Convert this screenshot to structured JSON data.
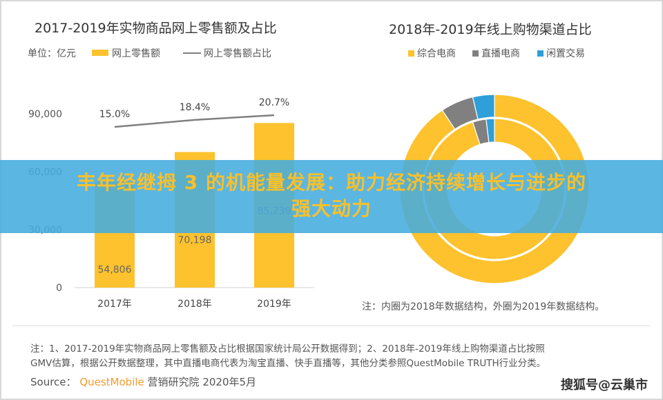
{
  "chart_data": [
    {
      "type": "bar",
      "title": "2017-2019年实物商品网上零售额及占比",
      "unit_label": "单位：亿元",
      "categories": [
        "2017年",
        "2018年",
        "2019年"
      ],
      "series": [
        {
          "name": "网上零售额",
          "type": "bar",
          "values": [
            54806,
            70198,
            85239
          ],
          "labels": [
            "54,806",
            "70,198",
            "85,239"
          ],
          "color": "#fdc22d"
        },
        {
          "name": "网上零售额占比",
          "type": "line",
          "values": [
            15.0,
            18.4,
            20.7
          ],
          "labels": [
            "15.0%",
            "18.4%",
            "20.7%"
          ],
          "color": "#7f7f7f"
        }
      ],
      "yticks": [
        "90,000",
        "60,000",
        "30,000",
        "0"
      ],
      "ylim": [
        0,
        90000
      ]
    },
    {
      "type": "pie",
      "subtype": "donut",
      "title": "2018年-2019年线上购物渠道占比",
      "legend": [
        "综合电商",
        "直播电商",
        "闲置交易"
      ],
      "colors": [
        "#fdc22d",
        "#808080",
        "#2e9fd8"
      ],
      "rings": [
        {
          "name": "2018年",
          "position": "inner",
          "values": [
            95.0,
            3.1,
            1.9
          ]
        },
        {
          "name": "2019年",
          "position": "outer",
          "values": [
            90.7,
            5.6,
            3.7
          ]
        }
      ],
      "note": "注：内圈为2018年数据结构，外圈为2019年数据结构。"
    }
  ],
  "banner": {
    "line1": "丰年经继拇 3 的机能量发展：助力经济持续增长与进步的",
    "line2": "强大动力"
  },
  "footer": {
    "note1": "注：1、2017-2019年实物商品网上零售额及占比根据国家统计局公开数据得到；2、2018年-2019年线上购物渠道占比按照",
    "note2": "GMV估算，根据公开数据整理，其中直播电商代表为淘宝直播、快手直播等，其他分类参照QuestMobile TRUTH行业分类。",
    "source_label": "Source：",
    "source_brand": "QuestMobile",
    "source_rest": "营销研究院 2020年5月",
    "brand_color": "#f39b2a",
    "watermark": "搜狐号@云巢市"
  }
}
